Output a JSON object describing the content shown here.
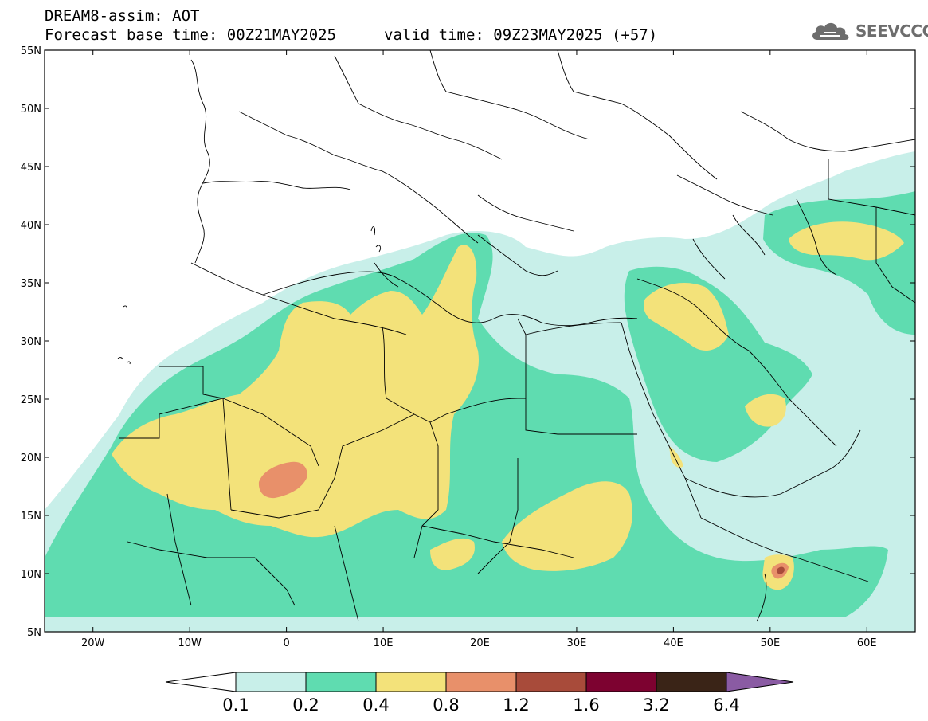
{
  "header": {
    "title_line1": "DREAM8-assim: AOT",
    "title_line2": "Forecast base time: 00Z21MAY2025",
    "valid_time": "valid time: 09Z23MAY2025 (+57)"
  },
  "logo": {
    "text": "SEEVCCC",
    "icon": "cloud-icon"
  },
  "map": {
    "lon_range": [
      -25,
      65
    ],
    "lat_range": [
      5,
      55
    ],
    "lat_ticks": [
      {
        "value": 55,
        "label": "55N"
      },
      {
        "value": 50,
        "label": "50N"
      },
      {
        "value": 45,
        "label": "45N"
      },
      {
        "value": 40,
        "label": "40N"
      },
      {
        "value": 35,
        "label": "35N"
      },
      {
        "value": 30,
        "label": "30N"
      },
      {
        "value": 25,
        "label": "25N"
      },
      {
        "value": 20,
        "label": "20N"
      },
      {
        "value": 15,
        "label": "15N"
      },
      {
        "value": 10,
        "label": "10N"
      },
      {
        "value": 5,
        "label": "5N"
      }
    ],
    "lon_ticks": [
      {
        "value": -20,
        "label": "20W"
      },
      {
        "value": -10,
        "label": "10W"
      },
      {
        "value": 0,
        "label": "0"
      },
      {
        "value": 10,
        "label": "10E"
      },
      {
        "value": 20,
        "label": "20E"
      },
      {
        "value": 30,
        "label": "30E"
      },
      {
        "value": 40,
        "label": "40E"
      },
      {
        "value": 50,
        "label": "50E"
      },
      {
        "value": 60,
        "label": "60E"
      }
    ],
    "colors": {
      "background": "#ffffff",
      "level1": "#c8efe9",
      "level2": "#5fdcb0",
      "level3": "#f3e27a",
      "level4": "#e8906a",
      "level5": "#a84b3a",
      "level6": "#7d0230",
      "level7": "#3a2417",
      "level8": "#8a5ba3",
      "border": "#000000"
    }
  },
  "colorbar": {
    "levels": [
      "0.1",
      "0.2",
      "0.4",
      "0.8",
      "1.2",
      "1.6",
      "3.2",
      "6.4"
    ],
    "colors": [
      "#ffffff",
      "#c8efe9",
      "#5fdcb0",
      "#f3e27a",
      "#e8906a",
      "#a84b3a",
      "#7d0230",
      "#3a2417",
      "#8a5ba3"
    ]
  }
}
